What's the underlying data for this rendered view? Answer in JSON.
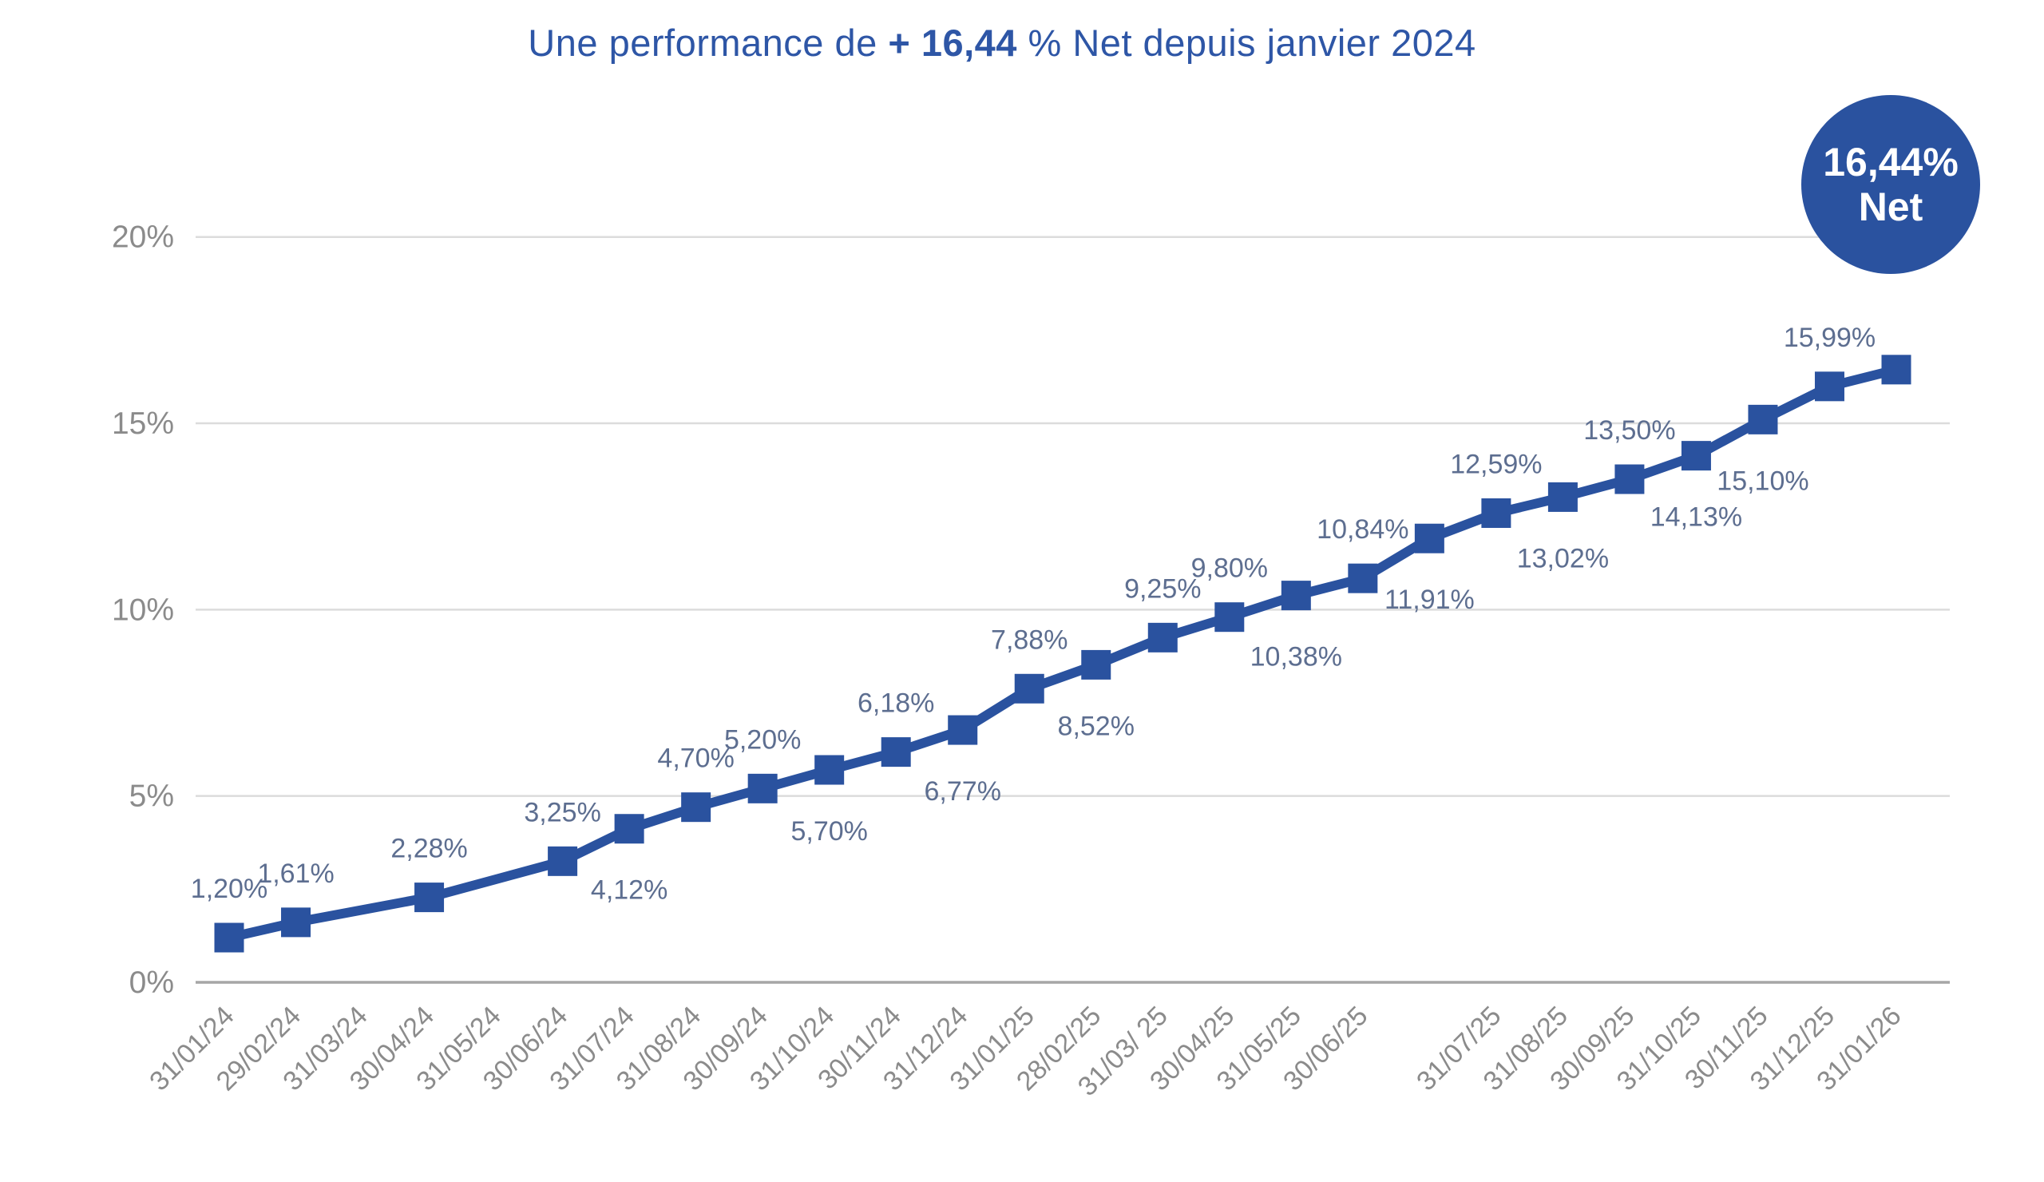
{
  "title": {
    "prefix": "Une performance de ",
    "highlight": "+ 16,44",
    "suffix": " % Net depuis janvier 2024"
  },
  "badge": {
    "value": "16,44%",
    "label": "Net"
  },
  "colors": {
    "accent_blue": "#2a529f",
    "title_blue": "#2e56a6",
    "data_label": "#5d6e90",
    "axis_label": "#8b8b8b",
    "gridline": "#dcdcdc",
    "axis_line": "#a6a6a6",
    "badge_bg": "#2a529f",
    "badge_text": "#ffffff",
    "background": "#ffffff"
  },
  "chart_data": {
    "type": "line",
    "title": "Une performance de + 16,44 % Net depuis janvier 2024",
    "xlabel": "",
    "ylabel": "",
    "ylim": [
      0,
      20
    ],
    "grid": true,
    "legend": "none",
    "marker": "square",
    "y_ticks": [
      {
        "value": 0,
        "label": "0%"
      },
      {
        "value": 5,
        "label": "5%"
      },
      {
        "value": 10,
        "label": "10%"
      },
      {
        "value": 15,
        "label": "15%"
      },
      {
        "value": 20,
        "label": "20%"
      }
    ],
    "x_slot_count": 26,
    "x_labels": [
      "31/01/24",
      "29/02/24",
      "31/03/24",
      "30/04/24",
      "31/05/24",
      "30/06/24",
      "31/07/24",
      "31/08/24",
      "30/09/24",
      "31/10/24",
      "30/11/24",
      "31/12/24",
      "31/01/25",
      "28/02/25",
      "31/03/ 25",
      "30/04/25",
      "31/05/25",
      "30/06/25",
      "",
      "31/07/25",
      "31/08/25",
      "30/09/25",
      "31/10/25",
      "30/11/25",
      "31/12/25",
      "31/01/26"
    ],
    "dates_without_point": [
      "31/03/24",
      "31/05/24"
    ],
    "points": [
      {
        "slot": 0,
        "value": 1.2,
        "label": "1,20%",
        "label_pos": "above"
      },
      {
        "slot": 1,
        "value": 1.61,
        "label": "1,61%",
        "label_pos": "above"
      },
      {
        "slot": 3,
        "value": 2.28,
        "label": "2,28%",
        "label_pos": "above"
      },
      {
        "slot": 5,
        "value": 3.25,
        "label": "3,25%",
        "label_pos": "above"
      },
      {
        "slot": 6,
        "value": 4.12,
        "label": "4,12%",
        "label_pos": "below"
      },
      {
        "slot": 7,
        "value": 4.7,
        "label": "4,70%",
        "label_pos": "above"
      },
      {
        "slot": 8,
        "value": 5.2,
        "label": "5,20%",
        "label_pos": "above"
      },
      {
        "slot": 9,
        "value": 5.7,
        "label": "5,70%",
        "label_pos": "below"
      },
      {
        "slot": 10,
        "value": 6.18,
        "label": "6,18%",
        "label_pos": "above"
      },
      {
        "slot": 11,
        "value": 6.77,
        "label": "6,77%",
        "label_pos": "below"
      },
      {
        "slot": 12,
        "value": 7.88,
        "label": "7,88%",
        "label_pos": "above"
      },
      {
        "slot": 13,
        "value": 8.52,
        "label": "8,52%",
        "label_pos": "below"
      },
      {
        "slot": 14,
        "value": 9.25,
        "label": "9,25%",
        "label_pos": "above"
      },
      {
        "slot": 15,
        "value": 9.8,
        "label": "9,80%",
        "label_pos": "above"
      },
      {
        "slot": 16,
        "value": 10.38,
        "label": "10,38%",
        "label_pos": "below"
      },
      {
        "slot": 17,
        "value": 10.84,
        "label": "10,84%",
        "label_pos": "above"
      },
      {
        "slot": 18,
        "value": 11.91,
        "label": "11,91%",
        "label_pos": "below"
      },
      {
        "slot": 19,
        "value": 12.59,
        "label": "12,59%",
        "label_pos": "above"
      },
      {
        "slot": 20,
        "value": 13.02,
        "label": "13,02%",
        "label_pos": "below"
      },
      {
        "slot": 21,
        "value": 13.5,
        "label": "13,50%",
        "label_pos": "above"
      },
      {
        "slot": 22,
        "value": 14.13,
        "label": "14,13%",
        "label_pos": "below"
      },
      {
        "slot": 23,
        "value": 15.1,
        "label": "15,10%",
        "label_pos": "below"
      },
      {
        "slot": 24,
        "value": 15.99,
        "label": "15,99%",
        "label_pos": "above"
      },
      {
        "slot": 25,
        "value": 16.44,
        "label": "",
        "label_pos": "none"
      }
    ]
  }
}
